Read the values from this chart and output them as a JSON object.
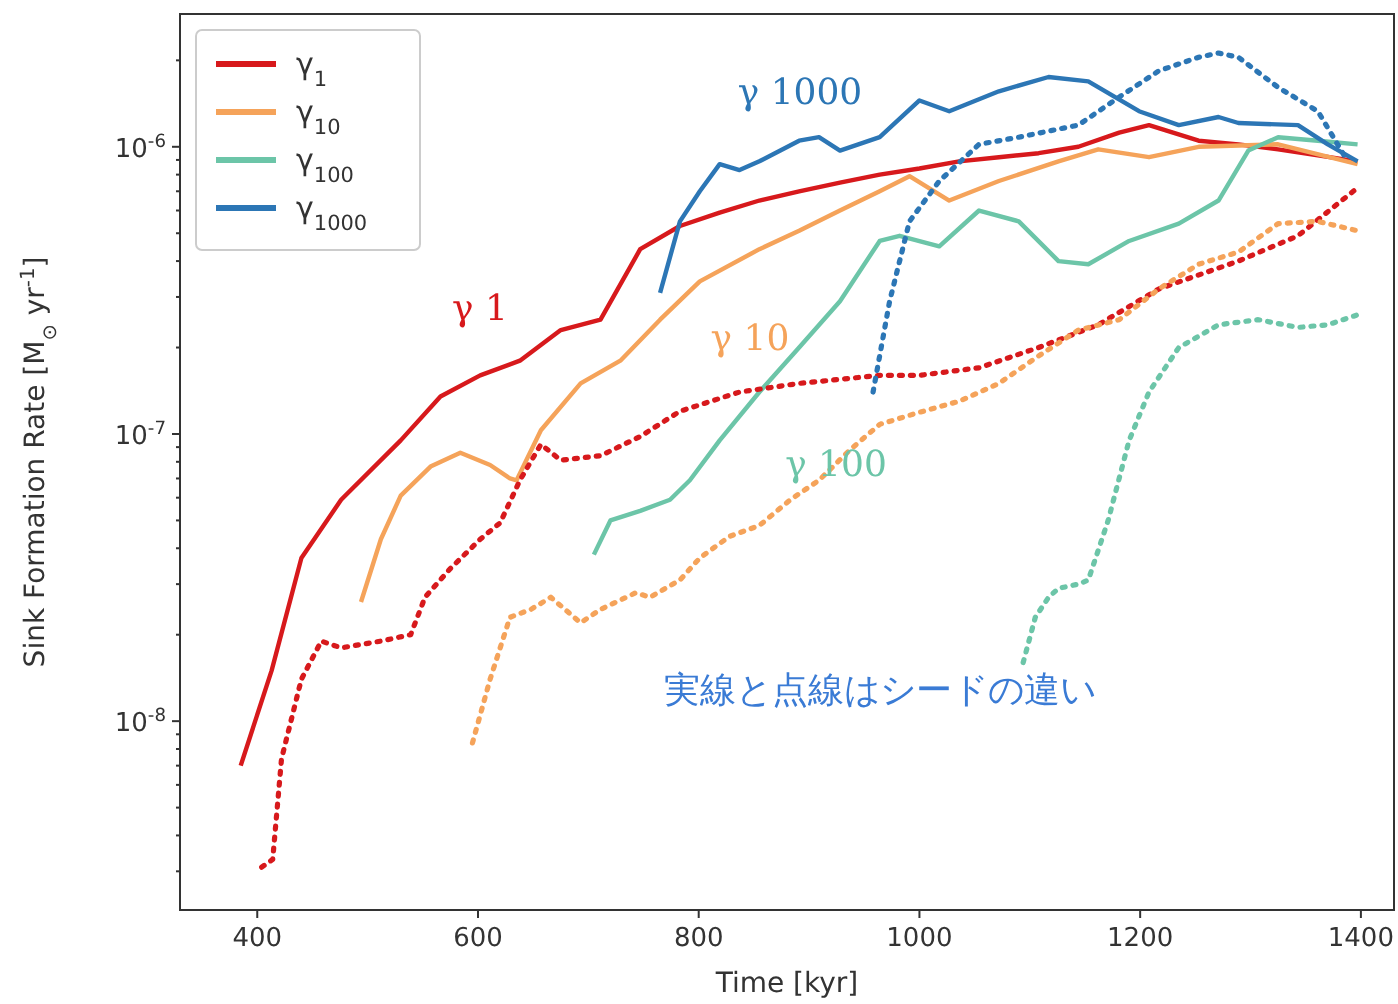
{
  "chart_data": {
    "type": "line",
    "xlabel": "Time [kyr]",
    "ylabel": "Sink Formation Rate  [M$_{⊙}$ yr$^{-1}$]",
    "log": "y",
    "grid": false,
    "legend": "top left",
    "xlim": [
      330,
      1430
    ],
    "ylim": [
      2.2e-09,
      2.9e-06
    ],
    "xticks": [
      400,
      600,
      800,
      1000,
      1200,
      1400
    ],
    "yticks": [
      {
        "value": 3e-09,
        "label": null
      },
      {
        "value": 4e-09,
        "label": null
      },
      {
        "value": 5e-09,
        "label": null
      },
      {
        "value": 6e-09,
        "label": null
      },
      {
        "value": 7e-09,
        "label": null
      },
      {
        "value": 8e-09,
        "label": null
      },
      {
        "value": 9e-09,
        "label": null
      },
      {
        "value": 1e-08,
        "label": "10$^{-8}$"
      },
      {
        "value": 2e-08,
        "label": null
      },
      {
        "value": 3e-08,
        "label": null
      },
      {
        "value": 4e-08,
        "label": null
      },
      {
        "value": 5e-08,
        "label": null
      },
      {
        "value": 6e-08,
        "label": null
      },
      {
        "value": 7e-08,
        "label": null
      },
      {
        "value": 8e-08,
        "label": null
      },
      {
        "value": 9e-08,
        "label": null
      },
      {
        "value": 1e-07,
        "label": "10$^{-7}$"
      },
      {
        "value": 2e-07,
        "label": null
      },
      {
        "value": 3e-07,
        "label": null
      },
      {
        "value": 4e-07,
        "label": null
      },
      {
        "value": 5e-07,
        "label": null
      },
      {
        "value": 6e-07,
        "label": null
      },
      {
        "value": 7e-07,
        "label": null
      },
      {
        "value": 8e-07,
        "label": null
      },
      {
        "value": 9e-07,
        "label": null
      },
      {
        "value": 1e-06,
        "label": "10$^{-6}$"
      },
      {
        "value": 2e-06,
        "label": null
      }
    ],
    "series": [
      {
        "name": "γ$_{1}$",
        "color": "#d7191c",
        "line_style": "solid",
        "x": [
          385,
          413,
          440,
          476,
          530,
          566,
          602,
          638,
          675,
          711,
          747,
          783,
          819,
          855,
          891,
          928,
          964,
          1000,
          1036,
          1072,
          1108,
          1144,
          1181,
          1208,
          1253,
          1289,
          1325,
          1397
        ],
        "values": [
          7e-09,
          1.5e-08,
          3.7e-08,
          5.9e-08,
          9.5e-08,
          1.35e-07,
          1.6e-07,
          1.8e-07,
          2.3e-07,
          2.5e-07,
          4.4e-07,
          5.3e-07,
          5.9e-07,
          6.5e-07,
          7e-07,
          7.5e-07,
          8e-07,
          8.4e-07,
          8.9e-07,
          9.2e-07,
          9.5e-07,
          1e-06,
          1.12e-06,
          1.19e-06,
          1.05e-06,
          1.02e-06,
          9.8e-07,
          8.9e-07
        ]
      },
      {
        "name": "γ$_{10}$",
        "color": "#f5a35a",
        "line_style": "solid",
        "x": [
          494,
          512,
          530,
          557,
          584,
          611,
          629,
          635,
          657,
          693,
          729,
          765,
          801,
          855,
          891,
          928,
          964,
          991,
          1027,
          1072,
          1126,
          1162,
          1208,
          1253,
          1325,
          1397
        ],
        "values": [
          2.6e-08,
          4.3e-08,
          6.1e-08,
          7.7e-08,
          8.6e-08,
          7.8e-08,
          7e-08,
          6.9e-08,
          1.03e-07,
          1.5e-07,
          1.8e-07,
          2.5e-07,
          3.4e-07,
          4.4e-07,
          5.1e-07,
          6e-07,
          7e-07,
          7.9e-07,
          6.5e-07,
          7.6e-07,
          8.9e-07,
          9.8e-07,
          9.2e-07,
          1e-06,
          1.02e-06,
          8.7e-07
        ]
      },
      {
        "name": "γ$_{100}$",
        "color": "#6cc5a8",
        "line_style": "solid",
        "x": [
          705,
          720,
          747,
          774,
          792,
          819,
          855,
          891,
          928,
          964,
          982,
          1018,
          1054,
          1090,
          1126,
          1153,
          1190,
          1235,
          1271,
          1298,
          1325,
          1361,
          1397
        ],
        "values": [
          3.8e-08,
          5e-08,
          5.4e-08,
          5.9e-08,
          6.9e-08,
          9.5e-08,
          1.4e-07,
          2e-07,
          2.9e-07,
          4.7e-07,
          4.9e-07,
          4.5e-07,
          6e-07,
          5.5e-07,
          4e-07,
          3.9e-07,
          4.7e-07,
          5.4e-07,
          6.5e-07,
          9.7e-07,
          1.08e-06,
          1.05e-06,
          1.02e-06
        ]
      },
      {
        "name": "γ$_{1000}$",
        "color": "#2c76b5",
        "line_style": "solid",
        "x": [
          765,
          783,
          801,
          819,
          837,
          855,
          891,
          909,
          928,
          964,
          1000,
          1027,
          1072,
          1117,
          1153,
          1199,
          1235,
          1271,
          1289,
          1343,
          1370,
          1397
        ],
        "values": [
          3.1e-07,
          5.5e-07,
          7e-07,
          8.7e-07,
          8.3e-07,
          8.9e-07,
          1.05e-06,
          1.08e-06,
          9.7e-07,
          1.08e-06,
          1.45e-06,
          1.33e-06,
          1.56e-06,
          1.75e-06,
          1.69e-06,
          1.33e-06,
          1.19e-06,
          1.27e-06,
          1.21e-06,
          1.19e-06,
          1.02e-06,
          8.9e-07
        ]
      },
      {
        "color": "#d7191c",
        "line_style": "dotted",
        "x": [
          404,
          414,
          422,
          440,
          458,
          476,
          512,
          539,
          552,
          575,
          602,
          620,
          638,
          657,
          675,
          711,
          747,
          783,
          837,
          891,
          964,
          1000,
          1054,
          1108,
          1162,
          1217,
          1289,
          1343,
          1397
        ],
        "values": [
          3.1e-09,
          3.3e-09,
          7.4e-09,
          1.4e-08,
          1.9e-08,
          1.8e-08,
          1.9e-08,
          2e-08,
          2.7e-08,
          3.4e-08,
          4.3e-08,
          4.9e-08,
          6.9e-08,
          9.2e-08,
          8.1e-08,
          8.4e-08,
          9.8e-08,
          1.2e-07,
          1.4e-07,
          1.5e-07,
          1.6e-07,
          1.6e-07,
          1.7e-07,
          2e-07,
          2.4e-07,
          3.2e-07,
          4e-07,
          4.9e-07,
          7.2e-07
        ]
      },
      {
        "color": "#f5a35a",
        "line_style": "dotted",
        "x": [
          595,
          611,
          629,
          648,
          666,
          693,
          711,
          743,
          756,
          783,
          801,
          828,
          855,
          883,
          909,
          937,
          964,
          1000,
          1036,
          1072,
          1108,
          1144,
          1181,
          1217,
          1253,
          1289,
          1325,
          1361,
          1397
        ],
        "values": [
          8.4e-09,
          1.4e-08,
          2.3e-08,
          2.45e-08,
          2.7e-08,
          2.2e-08,
          2.45e-08,
          2.8e-08,
          2.7e-08,
          3.1e-08,
          3.7e-08,
          4.4e-08,
          4.8e-08,
          5.9e-08,
          6.9e-08,
          8.8e-08,
          1.08e-07,
          1.19e-07,
          1.3e-07,
          1.5e-07,
          1.87e-07,
          2.3e-07,
          2.5e-07,
          3.2e-07,
          3.9e-07,
          4.3e-07,
          5.4e-07,
          5.5e-07,
          5.1e-07
        ]
      },
      {
        "color": "#6cc5a8",
        "line_style": "dotted",
        "x": [
          1094,
          1105,
          1117,
          1126,
          1144,
          1153,
          1171,
          1190,
          1208,
          1235,
          1271,
          1307,
          1343,
          1370,
          1397
        ],
        "values": [
          1.6e-08,
          2.3e-08,
          2.7e-08,
          2.9e-08,
          3e-08,
          3.1e-08,
          5e-08,
          9.5e-08,
          1.4e-07,
          2e-07,
          2.4e-07,
          2.5e-07,
          2.35e-07,
          2.4e-07,
          2.6e-07
        ]
      },
      {
        "color": "#2c76b5",
        "line_style": "dotted",
        "x": [
          958,
          973,
          991,
          1018,
          1054,
          1090,
          1144,
          1181,
          1217,
          1253,
          1271,
          1289,
          1325,
          1361,
          1388
        ],
        "values": [
          1.4e-07,
          2.9e-07,
          5.5e-07,
          7.6e-07,
          1.02e-06,
          1.08e-06,
          1.19e-06,
          1.49e-06,
          1.84e-06,
          2.05e-06,
          2.12e-06,
          2.05e-06,
          1.61e-06,
          1.33e-06,
          8.9e-07
        ]
      }
    ],
    "annotations": [
      "γ 1",
      "γ 10",
      "γ 100",
      "γ 1000",
      "実線と点線はシードの違い"
    ]
  }
}
